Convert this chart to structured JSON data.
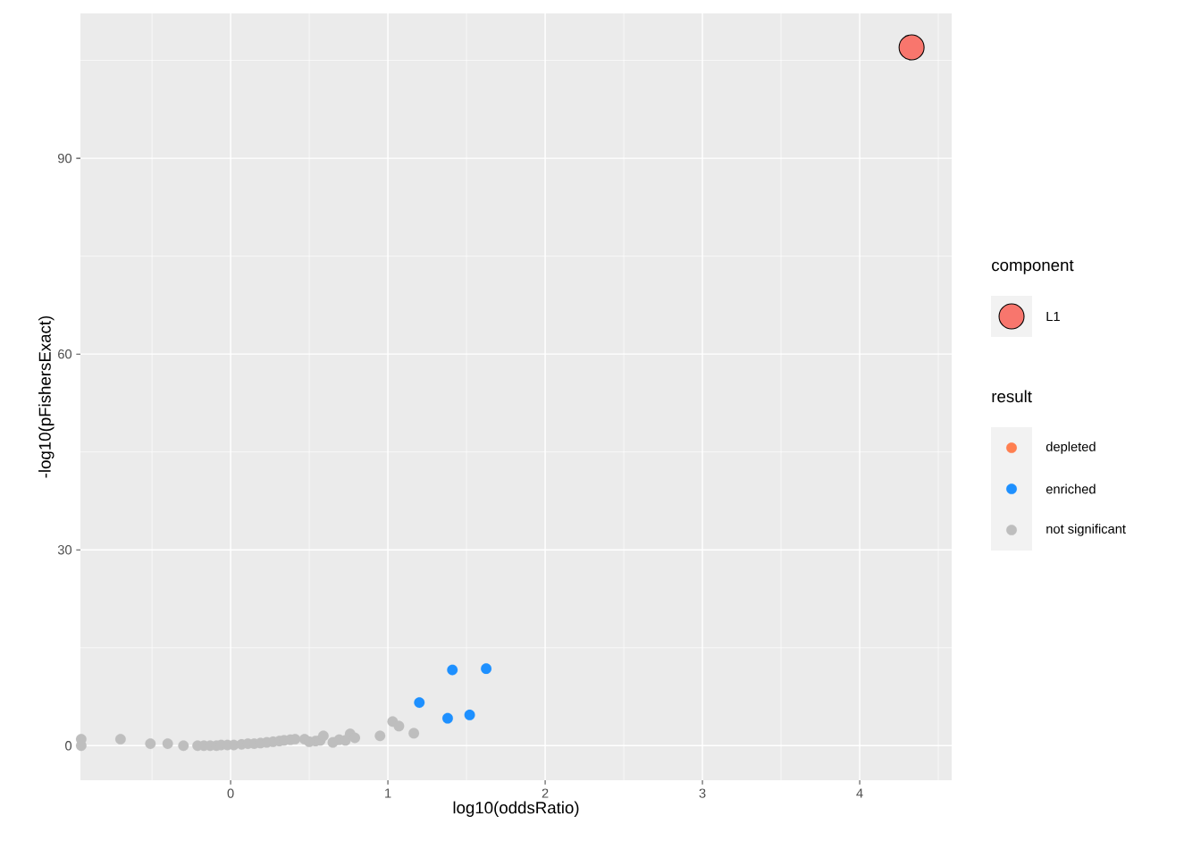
{
  "chart_data": {
    "type": "scatter",
    "xlabel": "log10(oddsRatio)",
    "ylabel": "-log10(pFishersExact)",
    "legend_title": "component",
    "annotations": [
      "result"
    ],
    "xlim": [
      -0.955,
      4.585
    ],
    "ylim": [
      -5.3,
      112.2
    ],
    "xticks": [
      0,
      1,
      2,
      3,
      4
    ],
    "yticks": [
      0,
      30,
      60,
      90
    ],
    "grid": true,
    "legend": "right",
    "marker": "circle",
    "series": [
      {
        "name": "L1",
        "type": "bubble",
        "color": "#f8766d",
        "x": [
          4.33
        ],
        "values": [
          107.0
        ],
        "sizes": [
          1
        ]
      },
      {
        "name": "depleted",
        "color": "#ff7f50"
      },
      {
        "name": "enriched",
        "color": "#1e90ff",
        "x": [
          1.2,
          1.41,
          1.625,
          1.38,
          1.52
        ],
        "values": [
          6.6,
          11.6,
          11.8,
          4.2,
          4.7
        ]
      },
      {
        "name": "not significant",
        "color": "#bebebe",
        "x": [
          -0.95,
          -0.95,
          -0.7,
          -0.51,
          -0.4,
          -0.3,
          -0.21,
          -0.17,
          -0.13,
          -0.09,
          -0.06,
          -0.02,
          0.02,
          0.07,
          0.11,
          0.15,
          0.19,
          0.23,
          0.27,
          0.31,
          0.34,
          0.38,
          0.41,
          0.47,
          0.5,
          0.54,
          0.57,
          0.59,
          0.65,
          0.69,
          0.73,
          0.76,
          0.79,
          0.95,
          1.03,
          1.07,
          1.165
        ],
        "values": [
          1.0,
          0.0,
          1.0,
          0.3,
          0.3,
          0.0,
          0.0,
          0.0,
          0.0,
          0.0,
          0.1,
          0.1,
          0.1,
          0.2,
          0.3,
          0.3,
          0.4,
          0.5,
          0.6,
          0.7,
          0.8,
          0.9,
          1.0,
          1.0,
          0.6,
          0.7,
          0.8,
          1.5,
          0.5,
          0.9,
          0.8,
          1.8,
          1.2,
          1.5,
          3.7,
          3.0,
          1.9
        ]
      }
    ]
  }
}
